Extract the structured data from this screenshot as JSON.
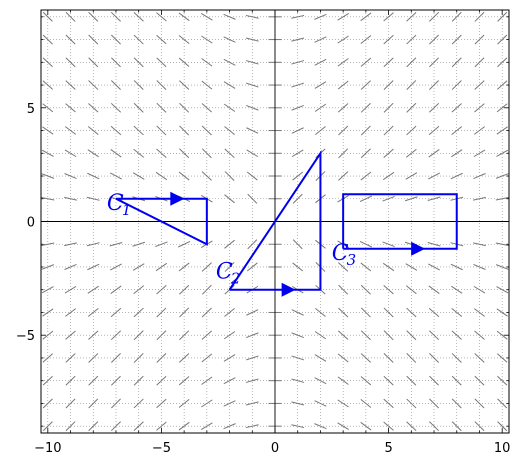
{
  "chart_data": {
    "type": "vector-field-with-curves",
    "title": "",
    "xlabel": "",
    "ylabel": "",
    "xlim": [
      -10.3,
      10.3
    ],
    "ylim": [
      -9.3,
      9.3
    ],
    "grid": true,
    "grid_style": "dotted",
    "x_ticks": [
      {
        "value": -10,
        "label": "−10"
      },
      {
        "value": -5,
        "label": "−5"
      },
      {
        "value": 0,
        "label": "0"
      },
      {
        "value": 5,
        "label": "5"
      },
      {
        "value": 10,
        "label": "10"
      }
    ],
    "y_ticks": [
      {
        "value": 5,
        "label": "5"
      },
      {
        "value": 0,
        "label": "0"
      },
      {
        "value": -5,
        "label": "−5"
      }
    ],
    "field": {
      "description": "direction field, segment slope dy/dx = 2xy/(x^2+y^2)",
      "x_range": [
        -10,
        10
      ],
      "y_range": [
        -9,
        9
      ],
      "step": 1,
      "color": "#777777"
    },
    "curves": [
      {
        "name": "C",
        "subscript": "1",
        "color": "#0000ee",
        "vertices": [
          [
            -7,
            1
          ],
          [
            -3,
            1
          ],
          [
            -3,
            -1
          ],
          [
            -7,
            1
          ]
        ],
        "arrow": {
          "at": [
            -4.3,
            1
          ],
          "direction": [
            1,
            0
          ]
        },
        "label_pos": [
          -7.4,
          0.5
        ]
      },
      {
        "name": "C",
        "subscript": "2",
        "color": "#0000ee",
        "vertices": [
          [
            -2,
            -3
          ],
          [
            2,
            -3
          ],
          [
            2,
            3
          ],
          [
            -2,
            -3
          ]
        ],
        "arrow": {
          "at": [
            0.6,
            -3
          ],
          "direction": [
            1,
            0
          ]
        },
        "label_pos": [
          -2.6,
          -2.5
        ]
      },
      {
        "name": "C",
        "subscript": "3",
        "color": "#0000ee",
        "vertices": [
          [
            3,
            -1.2
          ],
          [
            8,
            -1.2
          ],
          [
            8,
            1.2
          ],
          [
            3,
            1.2
          ],
          [
            3,
            -1.2
          ]
        ],
        "arrow": {
          "at": [
            6.3,
            -1.2
          ],
          "direction": [
            1,
            0
          ]
        },
        "label_pos": [
          2.5,
          -1.7
        ]
      }
    ]
  }
}
